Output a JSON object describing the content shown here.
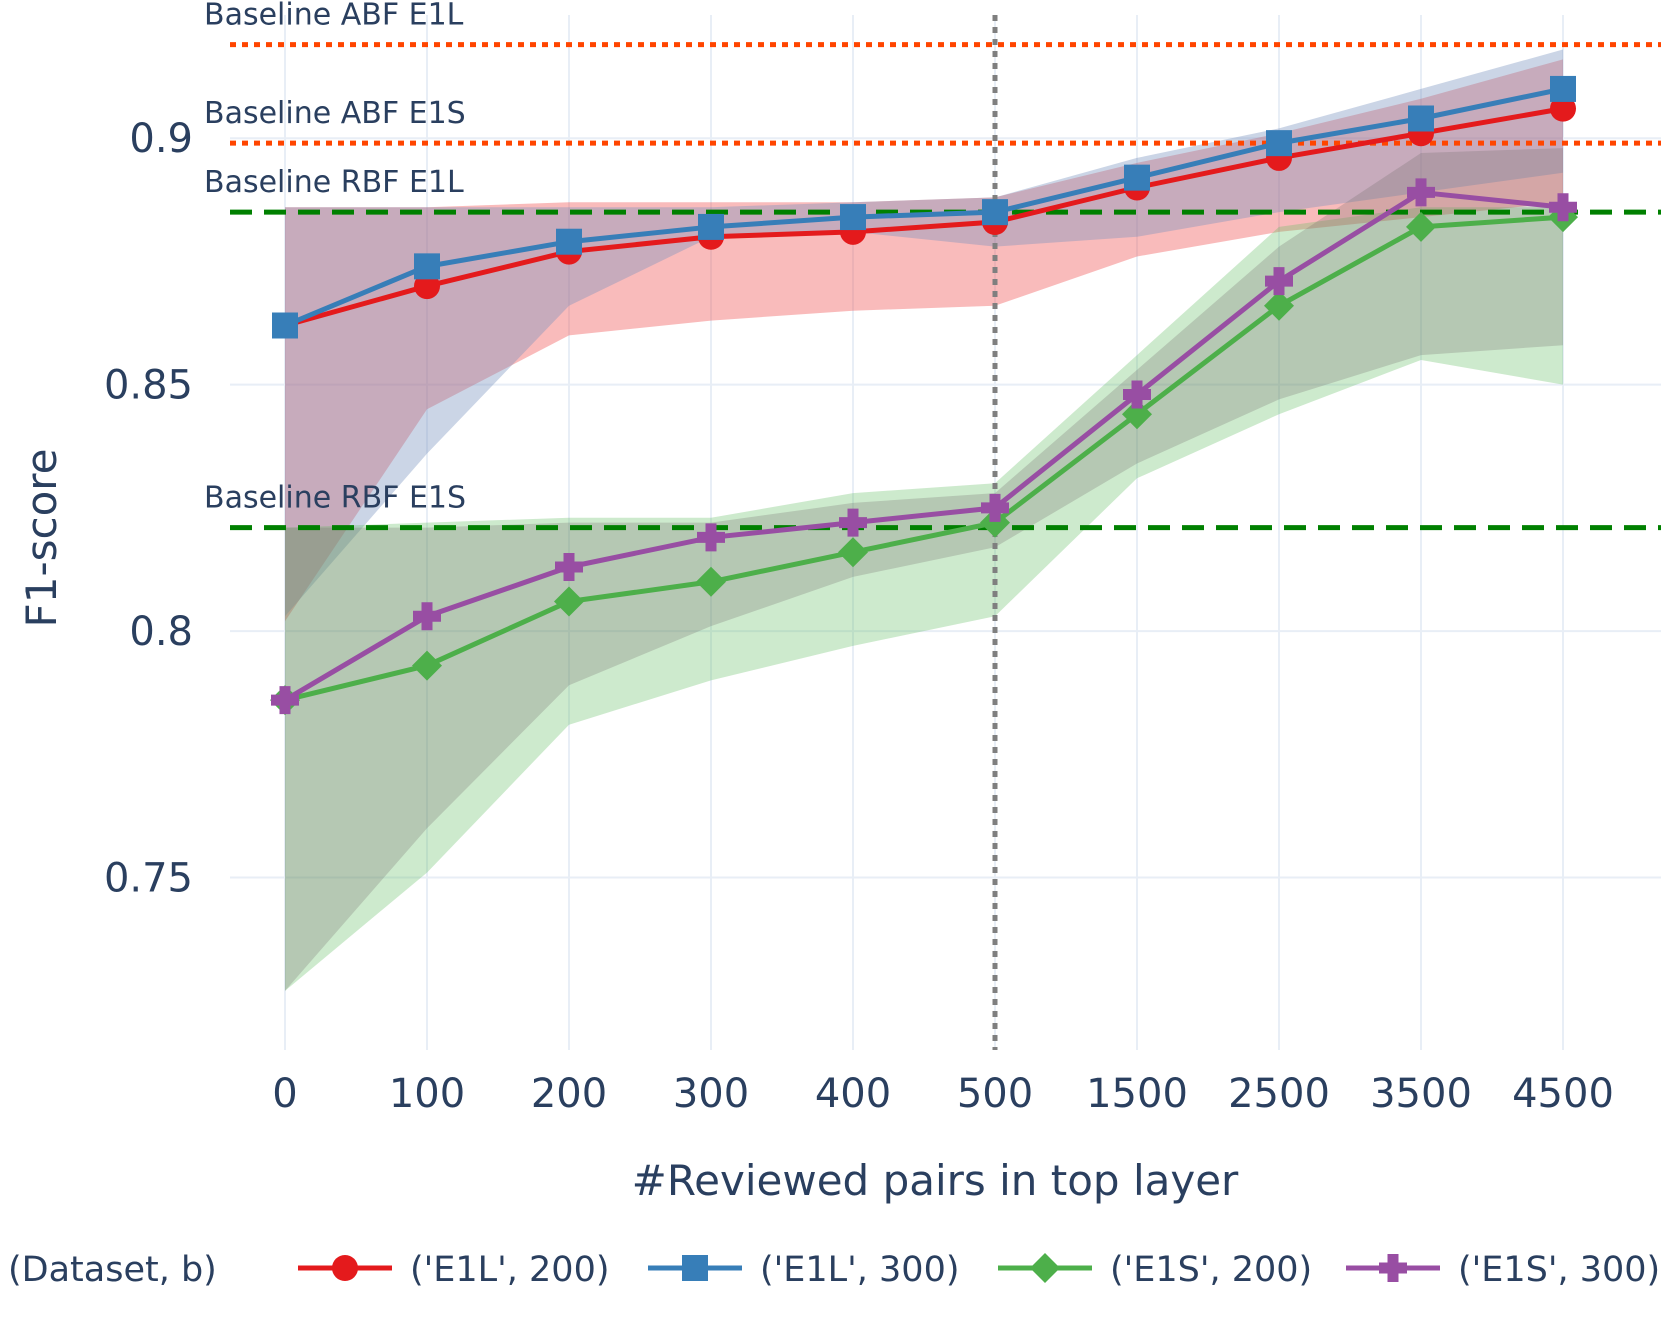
{
  "chart_data": {
    "type": "line",
    "xlabel": "#Reviewed pairs in top layer",
    "ylabel": "F1-score",
    "categories": [
      "0",
      "100",
      "200",
      "300",
      "400",
      "500",
      "1500",
      "2500",
      "3500",
      "4500"
    ],
    "ylim": [
      0.715,
      0.925
    ],
    "yticks": [
      0.75,
      0.8,
      0.85,
      0.9
    ],
    "ytick_labels": [
      "0.75",
      "0.8",
      "0.85",
      "0.9"
    ],
    "grid": true,
    "legend_title": "(Dataset, b)",
    "legend_position": "bottom",
    "vline": {
      "category_index": 5,
      "style": "dotted",
      "color": "#7f7f7f"
    },
    "baselines": [
      {
        "label": "Baseline ABF E1L",
        "value": 0.919,
        "style": "dotted",
        "color": "#ff4500"
      },
      {
        "label": "Baseline ABF E1S",
        "value": 0.899,
        "style": "dotted",
        "color": "#ff4500"
      },
      {
        "label": "Baseline RBF E1L",
        "value": 0.885,
        "style": "dashed",
        "color": "#008000"
      },
      {
        "label": "Baseline RBF E1S",
        "value": 0.821,
        "style": "dashed",
        "color": "#008000"
      }
    ],
    "series": [
      {
        "name": "('E1L', 200)",
        "color": "#e41a1c",
        "marker": "circle",
        "values": [
          0.862,
          0.87,
          0.877,
          0.88,
          0.881,
          0.883,
          0.89,
          0.896,
          0.901,
          0.906
        ],
        "band_lower": [
          0.802,
          0.845,
          0.86,
          0.863,
          0.865,
          0.866,
          0.876,
          0.881,
          0.884,
          0.887
        ],
        "band_upper": [
          0.886,
          0.886,
          0.887,
          0.887,
          0.887,
          0.888,
          0.895,
          0.901,
          0.908,
          0.916
        ],
        "band_color": "rgba(239, 85, 85, 0.40)"
      },
      {
        "name": "('E1L', 300)",
        "color": "#377eb8",
        "marker": "square",
        "values": [
          0.862,
          0.874,
          0.879,
          0.882,
          0.884,
          0.885,
          0.892,
          0.899,
          0.904,
          0.91
        ],
        "band_lower": [
          0.803,
          0.836,
          0.866,
          0.88,
          0.881,
          0.878,
          0.88,
          0.885,
          0.889,
          0.893
        ],
        "band_upper": [
          0.886,
          0.886,
          0.886,
          0.886,
          0.887,
          0.888,
          0.896,
          0.902,
          0.91,
          0.918
        ],
        "band_color": "rgba(119, 145, 190, 0.38)"
      },
      {
        "name": "('E1S', 200)",
        "color": "#4daf4a",
        "marker": "diamond",
        "values": [
          0.786,
          0.793,
          0.806,
          0.81,
          0.816,
          0.822,
          0.844,
          0.866,
          0.882,
          0.884
        ],
        "band_lower": [
          0.727,
          0.751,
          0.781,
          0.79,
          0.797,
          0.803,
          0.831,
          0.844,
          0.855,
          0.85
        ],
        "band_upper": [
          0.821,
          0.822,
          0.823,
          0.823,
          0.828,
          0.83,
          0.856,
          0.882,
          0.886,
          0.886
        ],
        "band_color": "rgba(100, 190, 100, 0.32)"
      },
      {
        "name": "('E1S', 300)",
        "color": "#984ea3",
        "marker": "cross",
        "values": [
          0.786,
          0.803,
          0.813,
          0.819,
          0.822,
          0.825,
          0.848,
          0.871,
          0.889,
          0.886
        ],
        "band_lower": [
          0.727,
          0.76,
          0.789,
          0.801,
          0.811,
          0.817,
          0.834,
          0.847,
          0.856,
          0.858
        ],
        "band_upper": [
          0.821,
          0.821,
          0.822,
          0.822,
          0.826,
          0.828,
          0.853,
          0.878,
          0.897,
          0.898
        ],
        "band_color": "rgba(120, 110, 110, 0.28)"
      }
    ]
  }
}
